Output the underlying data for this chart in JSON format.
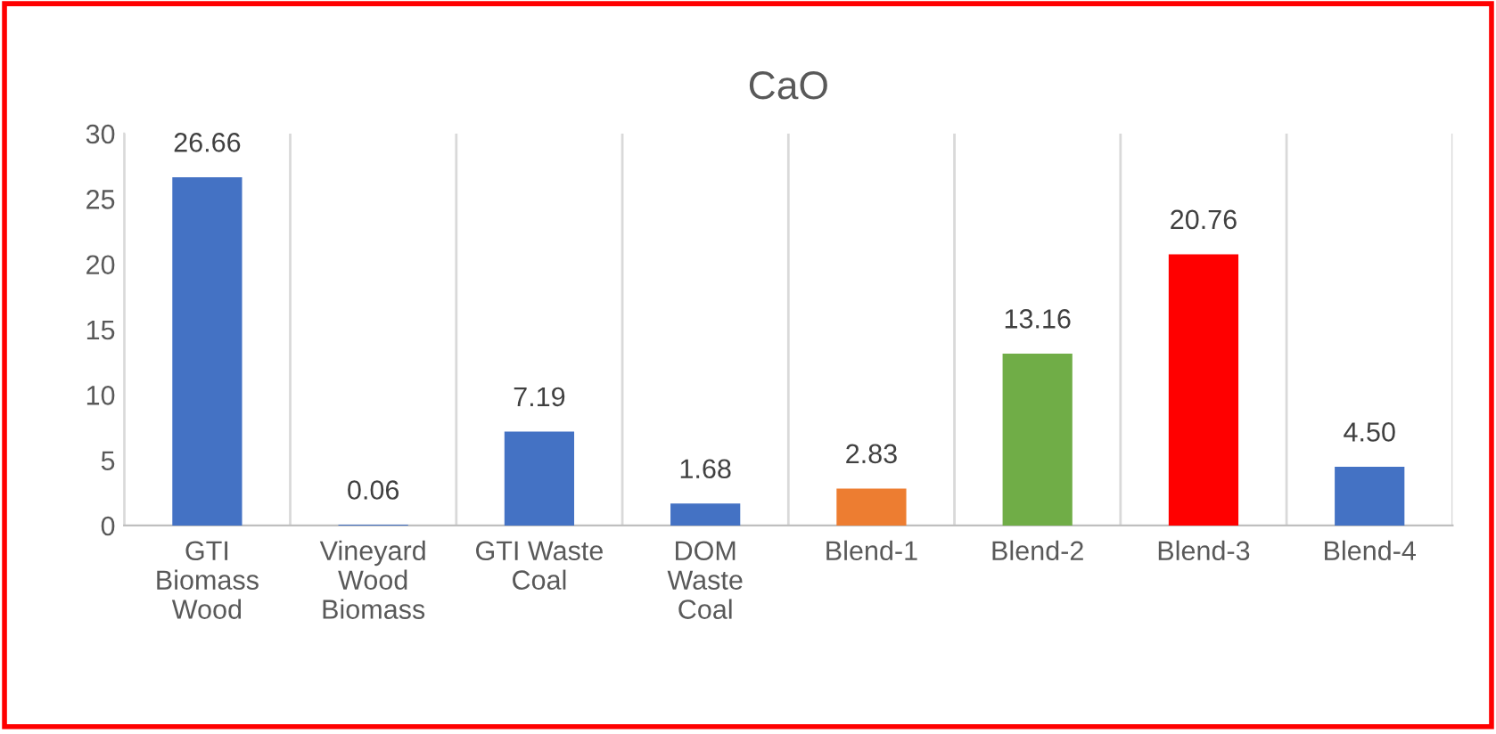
{
  "chart_data": {
    "type": "bar",
    "title": "CaO",
    "categories": [
      "GTI\nBiomass\nWood",
      "Vineyard\nWood\nBiomass",
      "GTI Waste\nCoal",
      "DOM\nWaste\nCoal",
      "Blend-1",
      "Blend-2",
      "Blend-3",
      "Blend-4"
    ],
    "values": [
      26.66,
      0.06,
      7.19,
      1.68,
      2.83,
      13.16,
      20.76,
      4.5
    ],
    "colors": [
      "#4472c4",
      "#4472c4",
      "#4472c4",
      "#4472c4",
      "#ed7d31",
      "#70ad47",
      "#ff0000",
      "#4472c4"
    ],
    "value_labels": [
      "26.66",
      "0.06",
      "7.19",
      "1.68",
      "2.83",
      "13.16",
      "20.76",
      "4.50"
    ],
    "ylim": [
      0,
      30
    ],
    "yticks": [
      0,
      5,
      10,
      15,
      20,
      25,
      30
    ],
    "grid": "x",
    "legend": false
  }
}
